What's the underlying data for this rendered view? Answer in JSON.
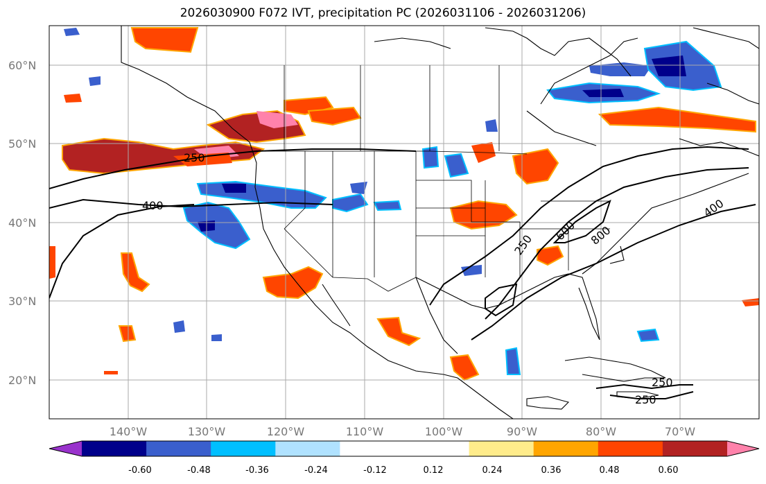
{
  "title": "2026030900 F072 IVT, precipitation PC (2026031106 - 2026031206)",
  "map": {
    "lat_labels": [
      "60°N",
      "50°N",
      "40°N",
      "30°N",
      "20°N"
    ],
    "lon_labels": [
      "140°W",
      "130°W",
      "120°W",
      "110°W",
      "100°W",
      "90°W",
      "80°W",
      "70°W"
    ],
    "ivt_contour_labels": [
      "250",
      "400",
      "250",
      "400",
      "600",
      "800",
      "250",
      "250"
    ]
  },
  "colorbar": {
    "colors": [
      "#9932cc",
      "#00008b",
      "#3a5fcd",
      "#00bfff",
      "#b0e2ff",
      "#ffffff",
      "#ffffff",
      "#ffec8b",
      "#ffa500",
      "#ff4500",
      "#b22222",
      "#ff82ab"
    ],
    "tick_labels": [
      "-0.60",
      "-0.48",
      "-0.36",
      "-0.24",
      "-0.12",
      "0.12",
      "0.24",
      "0.36",
      "0.48",
      "0.60"
    ]
  }
}
